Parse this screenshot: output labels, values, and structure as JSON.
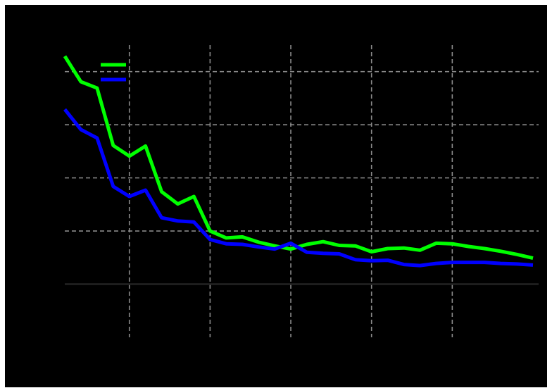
{
  "chart_data": {
    "type": "line",
    "title": "",
    "xlabel": "",
    "ylabel": "",
    "x": [
      0,
      1,
      2,
      3,
      4,
      5,
      6,
      7,
      8,
      9,
      10,
      11,
      12,
      13,
      14,
      15,
      16,
      17,
      18,
      19,
      20,
      21,
      22,
      23,
      24,
      25,
      26,
      27,
      28,
      29
    ],
    "xticks": [
      4,
      9,
      14,
      19,
      24
    ],
    "xlim": [
      0,
      29
    ],
    "ylim": [
      -1,
      4.5
    ],
    "yticks": [
      1,
      2,
      3,
      4
    ],
    "grid": true,
    "legend": "top-left",
    "series": [
      {
        "color": "#00ff00",
        "values": [
          4.29,
          3.81,
          3.69,
          2.61,
          2.41,
          2.6,
          1.74,
          1.51,
          1.65,
          1.0,
          0.87,
          0.89,
          0.79,
          0.72,
          0.66,
          0.75,
          0.8,
          0.73,
          0.72,
          0.61,
          0.67,
          0.68,
          0.64,
          0.77,
          0.76,
          0.71,
          0.67,
          0.62,
          0.56,
          0.49
        ]
      },
      {
        "color": "#0000ff",
        "values": [
          3.29,
          2.91,
          2.75,
          1.84,
          1.65,
          1.77,
          1.25,
          1.19,
          1.17,
          0.84,
          0.76,
          0.75,
          0.7,
          0.66,
          0.77,
          0.6,
          0.58,
          0.57,
          0.46,
          0.44,
          0.45,
          0.37,
          0.35,
          0.39,
          0.41,
          0.41,
          0.41,
          0.39,
          0.38,
          0.36
        ]
      }
    ]
  }
}
